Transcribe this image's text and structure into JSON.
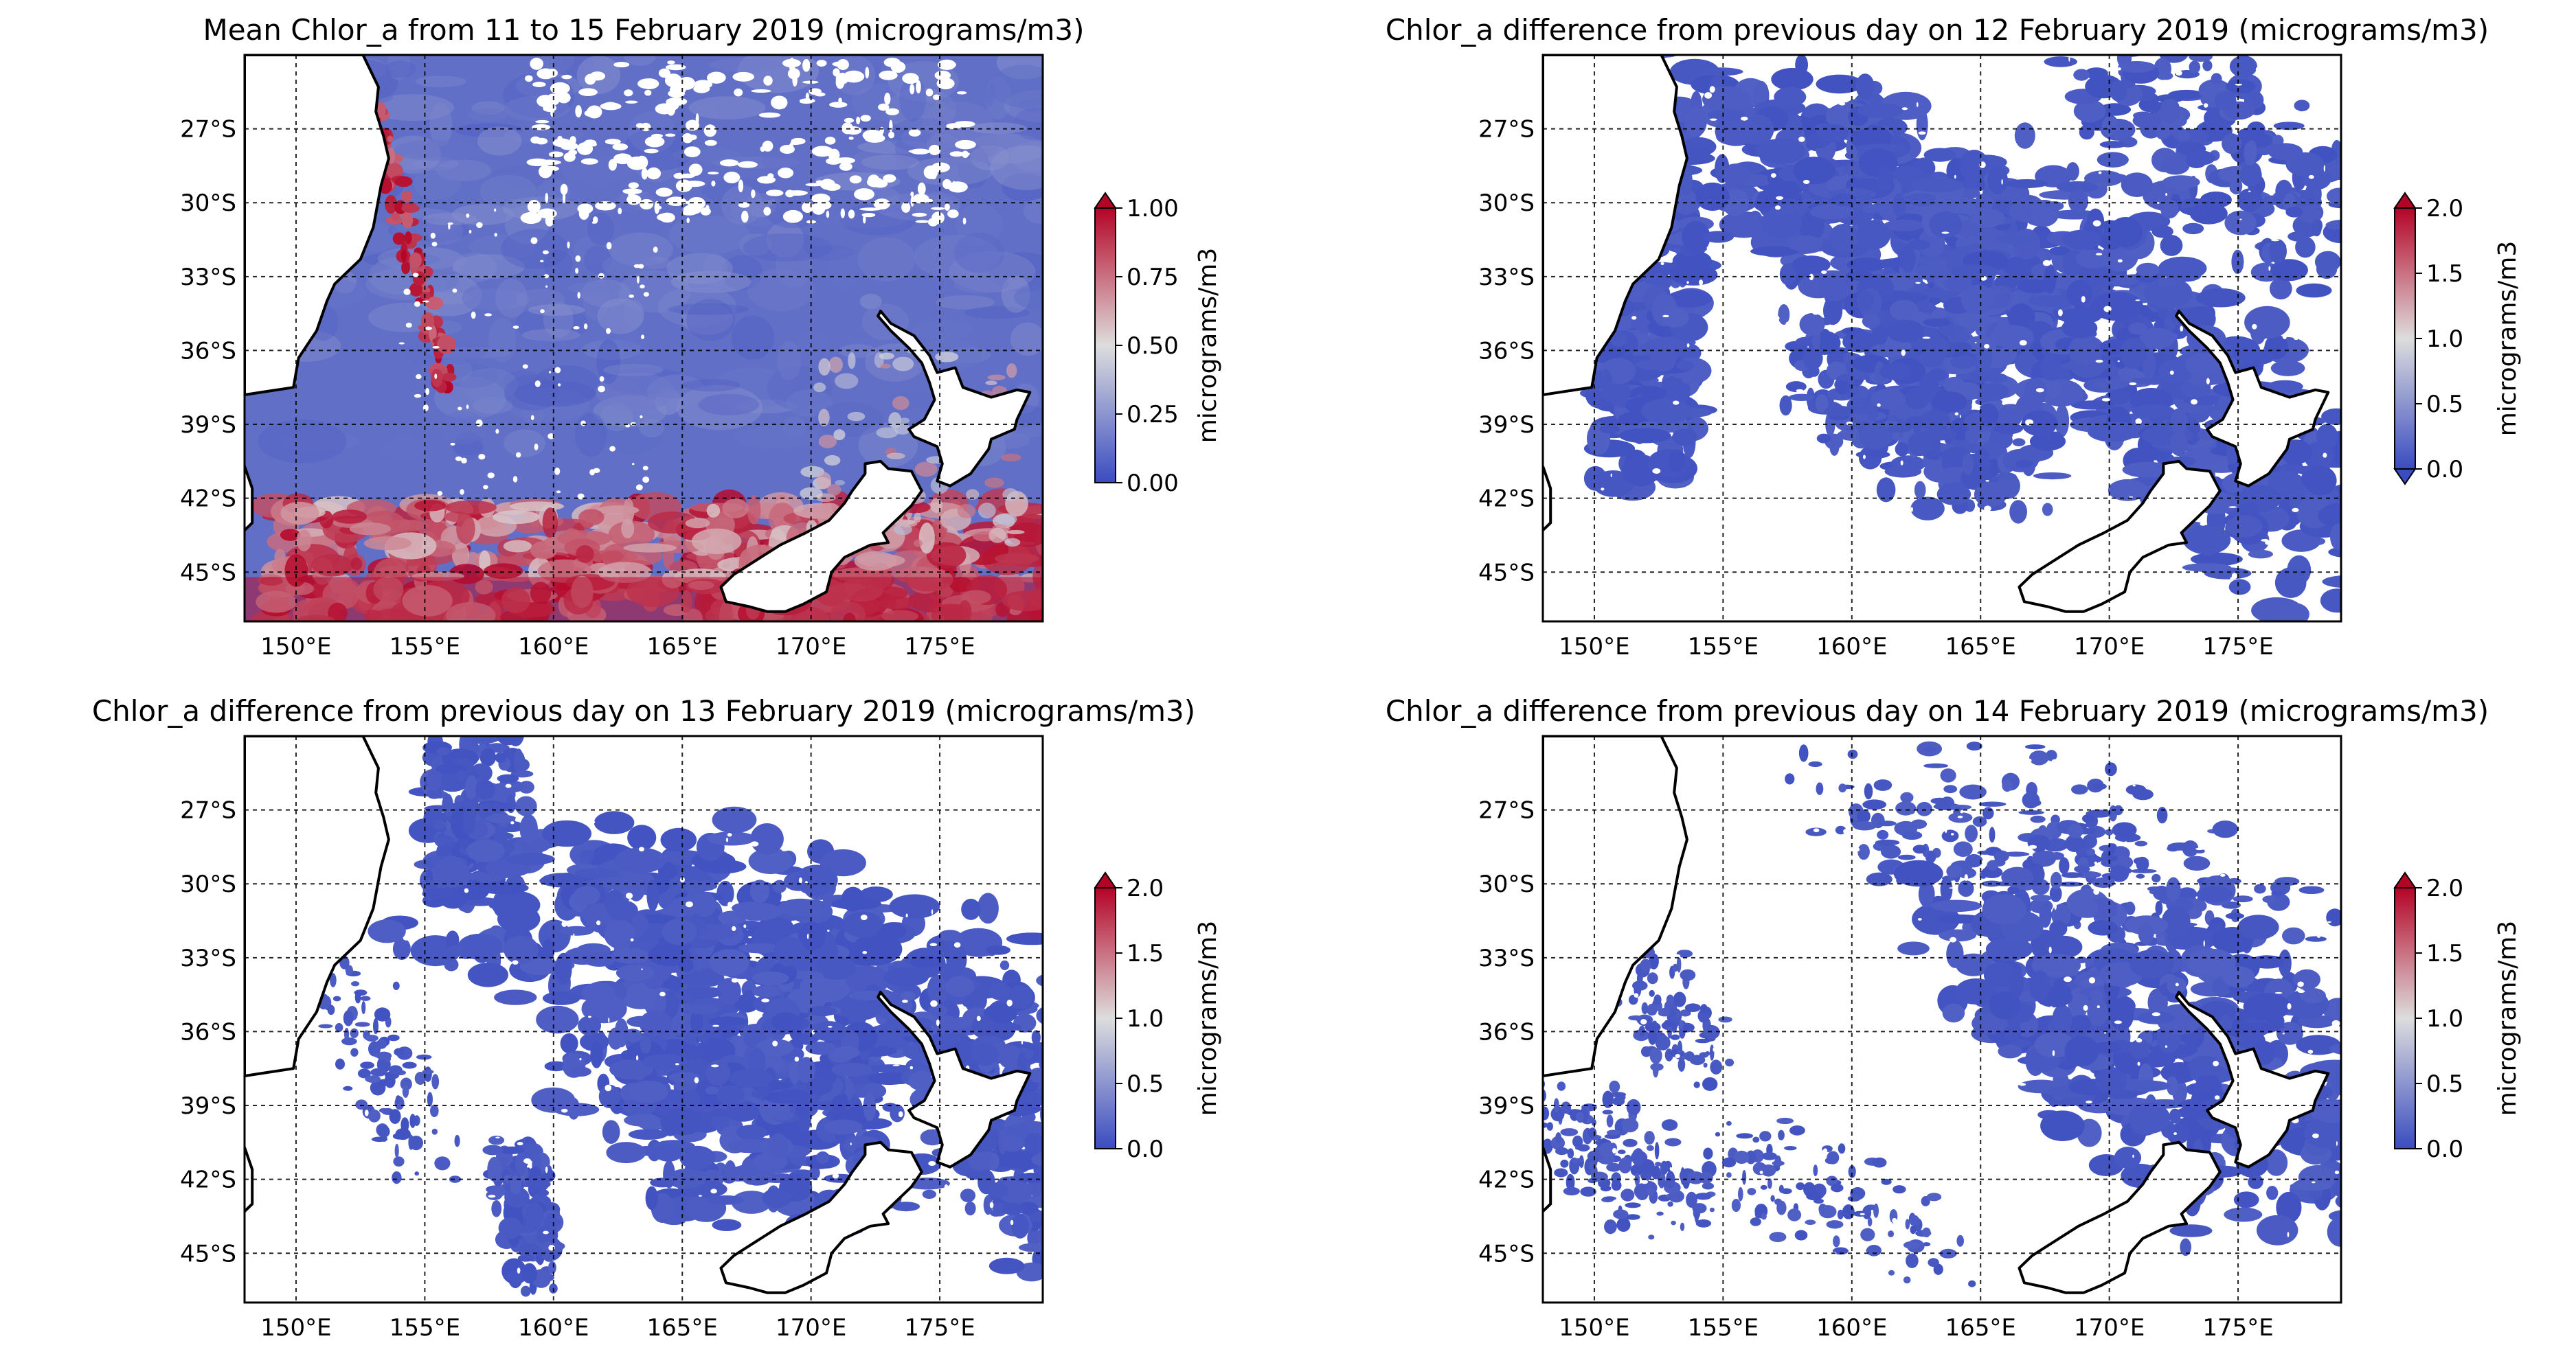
{
  "figure": {
    "panels": [
      {
        "title": "Mean Chlor_a from 11 to 15 February 2019  (micrograms/m3)",
        "colorbar": {
          "label": "micrograms/m3",
          "ticks": [
            "0.00",
            "0.25",
            "0.50",
            "0.75",
            "1.00"
          ],
          "min": 0,
          "max": 1,
          "extend": "max"
        },
        "field": "mean"
      },
      {
        "title": "Chlor_a difference from previous day on 12 February 2019 (micrograms/m3)",
        "colorbar": {
          "label": "micrograms/m3",
          "ticks": [
            "0.0",
            "0.5",
            "1.0",
            "1.5",
            "2.0"
          ],
          "min": 0,
          "max": 2,
          "extend": "both"
        },
        "field": "diff-12"
      },
      {
        "title": "Chlor_a difference from previous day on 13 February 2019 (micrograms/m3)",
        "colorbar": {
          "label": "micrograms/m3",
          "ticks": [
            "0.0",
            "0.5",
            "1.0",
            "1.5",
            "2.0"
          ],
          "min": 0,
          "max": 2,
          "extend": "max"
        },
        "field": "diff-13"
      },
      {
        "title": "Chlor_a difference from previous day on 14 February 2019 (micrograms/m3)",
        "colorbar": {
          "label": "micrograms/m3",
          "ticks": [
            "0.0",
            "0.5",
            "1.0",
            "1.5",
            "2.0"
          ],
          "min": 0,
          "max": 2,
          "extend": "max"
        },
        "field": "diff-14"
      }
    ],
    "lon_labels": [
      "150°E",
      "155°E",
      "160°E",
      "165°E",
      "170°E",
      "175°E"
    ],
    "lat_labels": [
      "27°S",
      "30°S",
      "33°S",
      "36°S",
      "39°S",
      "42°S",
      "45°S"
    ],
    "lon_range": [
      148,
      179
    ],
    "lat_range": [
      -47,
      -24
    ],
    "lon_ticks": [
      150,
      155,
      160,
      165,
      170,
      175
    ],
    "lat_ticks": [
      -27,
      -30,
      -33,
      -36,
      -39,
      -42,
      -45
    ],
    "gridlines": true,
    "colormap": {
      "low": "#3a4cc0",
      "mid": "#dddddd",
      "high": "#b40426"
    }
  }
}
